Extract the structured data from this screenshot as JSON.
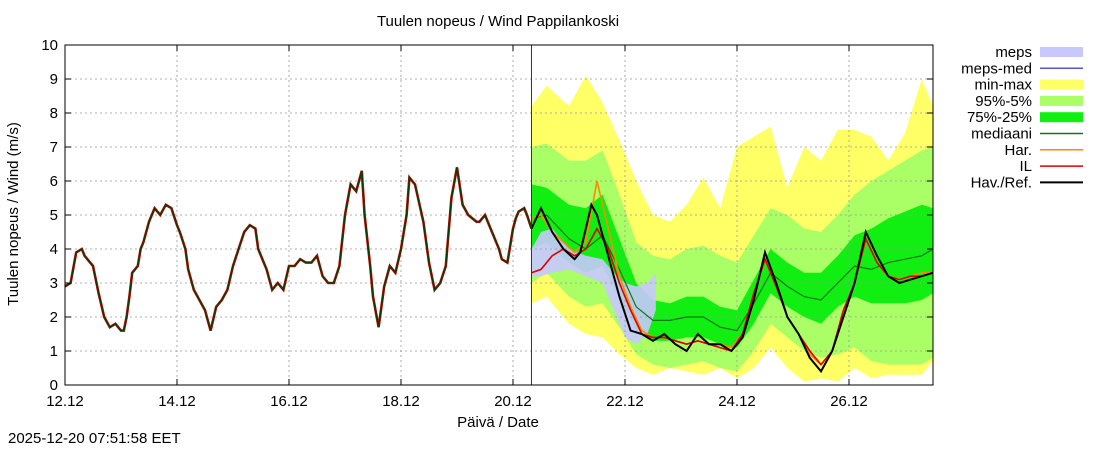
{
  "chart_data": {
    "type": "line",
    "title": "Tuulen nopeus / Wind  Pappilankoski",
    "xlabel": "Päivä / Date",
    "ylabel": "Tuulen nopeus / Wind (m/s)",
    "x_unit": "days since 12.12 00:00",
    "xlim": [
      0,
      15.5
    ],
    "ylim": [
      0,
      10
    ],
    "yticks": [
      "0",
      "1",
      "2",
      "3",
      "4",
      "5",
      "6",
      "7",
      "8",
      "9",
      "10"
    ],
    "xticks": [
      {
        "x": 0,
        "label": "12.12"
      },
      {
        "x": 2,
        "label": "14.12"
      },
      {
        "x": 4,
        "label": "16.12"
      },
      {
        "x": 6,
        "label": "18.12"
      },
      {
        "x": 8,
        "label": "20.12"
      },
      {
        "x": 10,
        "label": "22.12"
      },
      {
        "x": 12,
        "label": "24.12"
      },
      {
        "x": 14,
        "label": "26.12"
      }
    ],
    "forecast_start": 8.33,
    "grid": true,
    "legend_position": "right",
    "legend": [
      {
        "key": "meps",
        "label": "meps",
        "color": "#c8c8ff",
        "kind": "band"
      },
      {
        "key": "meps_med",
        "label": "meps-med",
        "color": "#5555cc",
        "kind": "line"
      },
      {
        "key": "minmax",
        "label": "min-max",
        "color": "#ffff66",
        "kind": "band"
      },
      {
        "key": "p95_5",
        "label": "95%-5%",
        "color": "#aaff66",
        "kind": "band"
      },
      {
        "key": "p75_25",
        "label": "75%-25%",
        "color": "#11ee11",
        "kind": "band"
      },
      {
        "key": "mediaani",
        "label": "mediaani",
        "color": "#117711",
        "kind": "line"
      },
      {
        "key": "har",
        "label": "Har.",
        "color": "#ff8800",
        "kind": "line"
      },
      {
        "key": "il",
        "label": "IL",
        "color": "#dd0000",
        "kind": "line"
      },
      {
        "key": "hav",
        "label": "Hav./Ref.",
        "color": "#000000",
        "kind": "line"
      }
    ],
    "series": {
      "observed": {
        "x": [
          0,
          0.1,
          0.2,
          0.3,
          0.35,
          0.5,
          0.6,
          0.7,
          0.8,
          0.9,
          1.0,
          1.05,
          1.1,
          1.15,
          1.2,
          1.3,
          1.35,
          1.4,
          1.5,
          1.6,
          1.7,
          1.8,
          1.9,
          2.0,
          2.05,
          2.15,
          2.2,
          2.3,
          2.4,
          2.5,
          2.6,
          2.7,
          2.8,
          2.9,
          3.0,
          3.1,
          3.2,
          3.3,
          3.4,
          3.45,
          3.55,
          3.6,
          3.7,
          3.8,
          3.9,
          4.0,
          4.1,
          4.2,
          4.3,
          4.4,
          4.5,
          4.6,
          4.7,
          4.8,
          4.9,
          5.0,
          5.1,
          5.2,
          5.3,
          5.35,
          5.45,
          5.5,
          5.6,
          5.7,
          5.8,
          5.9,
          6.0,
          6.1,
          6.15,
          6.25,
          6.4,
          6.5,
          6.6,
          6.7,
          6.8,
          6.9,
          7.0,
          7.1,
          7.2,
          7.35,
          7.4,
          7.5,
          7.6,
          7.75,
          7.8,
          7.9,
          8.0,
          8.05,
          8.1,
          8.2,
          8.25,
          8.33
        ],
        "y": [
          2.9,
          3.0,
          3.9,
          4.0,
          3.8,
          3.5,
          2.7,
          2.0,
          1.7,
          1.8,
          1.6,
          1.6,
          2.0,
          2.6,
          3.3,
          3.5,
          4.0,
          4.2,
          4.8,
          5.2,
          5.0,
          5.3,
          5.2,
          4.7,
          4.5,
          4.0,
          3.4,
          2.8,
          2.5,
          2.2,
          1.6,
          2.3,
          2.5,
          2.8,
          3.5,
          4.0,
          4.5,
          4.7,
          4.6,
          4.0,
          3.6,
          3.4,
          2.8,
          3.0,
          2.8,
          3.5,
          3.5,
          3.7,
          3.6,
          3.6,
          3.8,
          3.2,
          3.0,
          3.0,
          3.5,
          5.0,
          5.9,
          5.7,
          6.3,
          5.0,
          3.5,
          2.6,
          1.7,
          2.9,
          3.5,
          3.3,
          4.0,
          5.0,
          6.1,
          5.9,
          4.8,
          3.6,
          2.8,
          3.0,
          3.5,
          5.5,
          6.4,
          5.3,
          5.0,
          4.8,
          4.8,
          5.0,
          4.6,
          4.0,
          3.7,
          3.6,
          4.6,
          4.9,
          5.1,
          5.2,
          5.0,
          4.6
        ]
      },
      "observed_future": {
        "x": [
          8.33,
          8.5,
          8.7,
          8.9,
          9.1,
          9.2,
          9.4,
          9.5,
          9.7,
          9.9,
          10.1,
          10.3,
          10.5,
          10.7,
          10.9,
          11.1,
          11.3,
          11.5,
          11.7,
          11.9,
          12.1,
          12.3,
          12.5,
          12.7,
          12.9,
          13.1,
          13.3,
          13.5,
          13.7,
          13.9,
          14.1,
          14.3,
          14.5,
          14.7,
          14.9,
          15.1,
          15.3,
          15.5
        ],
        "y": [
          4.6,
          5.2,
          4.5,
          4.0,
          3.7,
          3.9,
          5.3,
          5.0,
          3.8,
          2.6,
          1.6,
          1.5,
          1.3,
          1.5,
          1.2,
          1.0,
          1.5,
          1.2,
          1.2,
          1.0,
          1.4,
          2.5,
          3.9,
          3.0,
          2.0,
          1.5,
          0.8,
          0.4,
          1.0,
          2.0,
          3.0,
          4.5,
          3.8,
          3.2,
          3.0,
          3.1,
          3.2,
          3.3
        ]
      },
      "il": {
        "x": [
          8.33,
          8.5,
          8.7,
          8.9,
          9.1,
          9.3,
          9.5,
          9.7,
          9.9,
          10.1,
          10.3,
          10.5,
          10.7,
          10.9,
          11.1,
          11.3,
          11.5,
          11.7,
          11.9,
          12.1,
          12.3,
          12.5,
          12.7,
          12.9,
          13.1,
          13.3,
          13.5,
          13.7,
          13.9,
          14.1,
          14.3,
          14.5,
          14.7,
          14.9,
          15.1,
          15.3,
          15.5
        ],
        "y": [
          3.3,
          3.4,
          3.8,
          4.0,
          3.8,
          4.0,
          4.6,
          4.0,
          3.0,
          2.2,
          1.5,
          1.4,
          1.4,
          1.3,
          1.2,
          1.3,
          1.2,
          1.1,
          1.0,
          1.5,
          2.7,
          3.7,
          2.9,
          2.0,
          1.5,
          1.0,
          0.6,
          1.0,
          2.2,
          3.0,
          4.3,
          3.6,
          3.2,
          3.1,
          3.2,
          3.2,
          3.3
        ]
      },
      "har": {
        "x": [
          8.33,
          8.5,
          8.7,
          8.9,
          9.1,
          9.3,
          9.5,
          9.7,
          9.9,
          10.1,
          10.3,
          10.5,
          10.7,
          10.9,
          11.1,
          11.3,
          11.5,
          11.7,
          11.9,
          12.1,
          12.3,
          12.5,
          12.7,
          12.9,
          13.1,
          13.3,
          13.5,
          13.7,
          13.9,
          14.1,
          14.3,
          14.5,
          14.7,
          14.9,
          15.1,
          15.3,
          15.5
        ],
        "y": [
          4.9,
          5.0,
          4.5,
          4.2,
          3.9,
          4.2,
          6.0,
          4.6,
          3.2,
          2.3,
          1.6,
          1.4,
          1.4,
          1.3,
          1.2,
          1.3,
          1.2,
          1.2,
          1.1,
          1.5,
          2.6,
          3.7,
          2.9,
          2.0,
          1.5,
          0.9,
          0.6,
          1.0,
          2.2,
          3.0,
          4.3,
          3.6,
          3.2,
          3.1,
          3.2,
          3.3,
          3.3
        ]
      },
      "mediaani": {
        "x": [
          8.33,
          8.6,
          9.0,
          9.3,
          9.6,
          9.9,
          10.2,
          10.5,
          10.8,
          11.1,
          11.4,
          11.7,
          12.0,
          12.3,
          12.6,
          12.9,
          13.2,
          13.5,
          13.8,
          14.1,
          14.4,
          14.7,
          15.0,
          15.3,
          15.5
        ],
        "y": [
          4.9,
          5.0,
          4.3,
          4.0,
          4.4,
          3.4,
          2.3,
          1.9,
          1.9,
          2.0,
          2.0,
          1.7,
          1.6,
          2.4,
          3.3,
          2.9,
          2.6,
          2.5,
          3.0,
          3.5,
          3.4,
          3.6,
          3.7,
          3.8,
          4.0
        ]
      },
      "p75_25": {
        "x": [
          8.33,
          8.6,
          9.0,
          9.3,
          9.6,
          9.9,
          10.2,
          10.5,
          10.8,
          11.1,
          11.4,
          11.7,
          12.0,
          12.3,
          12.6,
          12.9,
          13.2,
          13.5,
          13.8,
          14.1,
          14.4,
          14.7,
          15.0,
          15.3,
          15.5
        ],
        "hi": [
          5.9,
          5.8,
          5.3,
          5.2,
          5.6,
          4.3,
          3.0,
          2.5,
          2.4,
          2.6,
          2.6,
          2.3,
          2.2,
          3.1,
          4.0,
          3.6,
          3.3,
          3.3,
          3.8,
          4.4,
          4.6,
          4.9,
          5.1,
          5.3,
          5.2
        ],
        "lo": [
          4.0,
          4.2,
          3.6,
          3.3,
          3.5,
          2.6,
          1.6,
          1.3,
          1.3,
          1.4,
          1.4,
          1.2,
          1.1,
          1.8,
          2.7,
          2.3,
          2.0,
          1.8,
          2.3,
          2.6,
          2.4,
          2.4,
          2.4,
          2.5,
          2.7
        ]
      },
      "p95_5": {
        "x": [
          8.33,
          8.6,
          9.0,
          9.3,
          9.6,
          9.9,
          10.2,
          10.5,
          10.8,
          11.1,
          11.4,
          11.7,
          12.0,
          12.3,
          12.6,
          12.9,
          13.2,
          13.5,
          13.8,
          14.1,
          14.4,
          14.7,
          15.0,
          15.3,
          15.5
        ],
        "hi": [
          7.0,
          7.1,
          6.6,
          6.6,
          6.9,
          5.6,
          4.2,
          3.8,
          3.7,
          4.0,
          4.1,
          3.8,
          3.6,
          4.4,
          5.2,
          5.0,
          4.6,
          4.5,
          5.0,
          5.6,
          6.0,
          6.3,
          6.6,
          6.9,
          7.0
        ],
        "lo": [
          3.0,
          3.3,
          2.6,
          2.3,
          2.4,
          1.7,
          0.9,
          0.6,
          0.5,
          0.6,
          0.7,
          0.5,
          0.4,
          1.0,
          1.8,
          1.4,
          1.0,
          0.8,
          0.9,
          1.1,
          0.7,
          0.6,
          0.6,
          0.6,
          0.8
        ]
      },
      "minmax": {
        "x": [
          8.33,
          8.6,
          9.0,
          9.3,
          9.6,
          9.9,
          10.2,
          10.5,
          10.8,
          11.1,
          11.4,
          11.7,
          12.0,
          12.3,
          12.6,
          12.9,
          13.2,
          13.5,
          13.8,
          14.1,
          14.4,
          14.7,
          15.0,
          15.3,
          15.5
        ],
        "hi": [
          8.2,
          8.8,
          8.2,
          9.1,
          8.3,
          7.2,
          6.0,
          5.0,
          4.8,
          5.3,
          6.1,
          5.2,
          7.0,
          7.3,
          7.6,
          5.8,
          7.0,
          6.6,
          7.5,
          7.5,
          7.3,
          6.6,
          7.4,
          9.0,
          8.2
        ],
        "lo": [
          2.4,
          2.6,
          1.8,
          1.5,
          1.4,
          0.9,
          0.5,
          0.3,
          0.5,
          0.4,
          0.3,
          0.5,
          0.2,
          0.5,
          1.1,
          0.5,
          0.1,
          0.2,
          0.1,
          0.5,
          0.2,
          0.3,
          0.3,
          0.3,
          0.7
        ]
      },
      "meps": {
        "x": [
          8.33,
          8.5,
          8.7,
          9.0,
          9.3,
          9.6,
          9.8,
          10.0,
          10.2,
          10.4,
          10.55
        ],
        "hi": [
          4.0,
          4.5,
          4.6,
          4.0,
          3.8,
          3.7,
          3.3,
          3.0,
          2.9,
          3.0,
          3.3
        ],
        "lo": [
          3.2,
          3.2,
          3.3,
          3.4,
          3.2,
          3.0,
          2.2,
          1.4,
          1.2,
          1.5,
          2.2
        ]
      }
    }
  },
  "footer": {
    "timestamp": "2025-12-20 07:51:58 EET"
  }
}
